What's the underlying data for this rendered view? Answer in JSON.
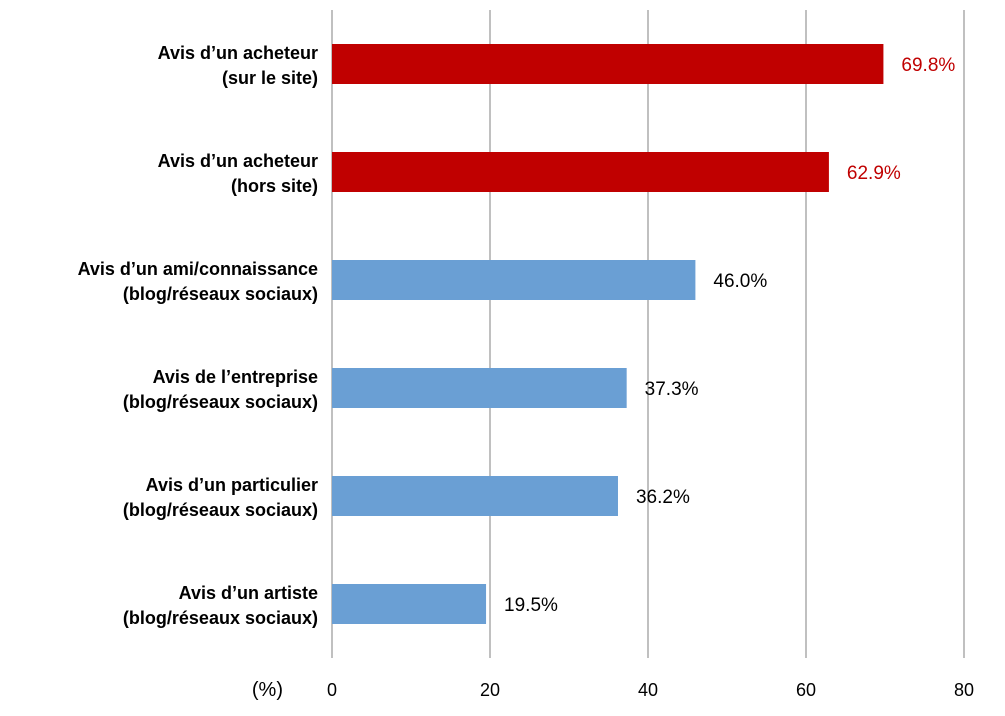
{
  "chart_data": {
    "type": "bar",
    "orientation": "horizontal",
    "categories": [
      [
        "Avis d’un acheteur",
        "(sur le site)"
      ],
      [
        "Avis d’un acheteur",
        "(hors site)"
      ],
      [
        "Avis d’un ami/connaissance",
        "(blog/réseaux sociaux)"
      ],
      [
        "Avis de l’entreprise",
        "(blog/réseaux sociaux)"
      ],
      [
        "Avis d’un particulier",
        "(blog/réseaux sociaux)"
      ],
      [
        "Avis d’un artiste",
        "(blog/réseaux sociaux)"
      ]
    ],
    "values": [
      69.8,
      62.9,
      46.0,
      37.3,
      36.2,
      19.5
    ],
    "value_labels": [
      "69.8%",
      "62.9%",
      "46.0%",
      "37.3%",
      "36.2%",
      "19.5%"
    ],
    "bar_colors": [
      "#c00000",
      "#c00000",
      "#6a9fd4",
      "#6a9fd4",
      "#6a9fd4",
      "#6a9fd4"
    ],
    "value_label_colors": [
      "#c00000",
      "#c00000",
      "#000000",
      "#000000",
      "#000000",
      "#000000"
    ],
    "xlim": [
      0,
      80
    ],
    "xticks": [
      0,
      20,
      40,
      60,
      80
    ],
    "xlabel": "(%)",
    "grid": true,
    "grid_color": "#808080",
    "title": ""
  }
}
